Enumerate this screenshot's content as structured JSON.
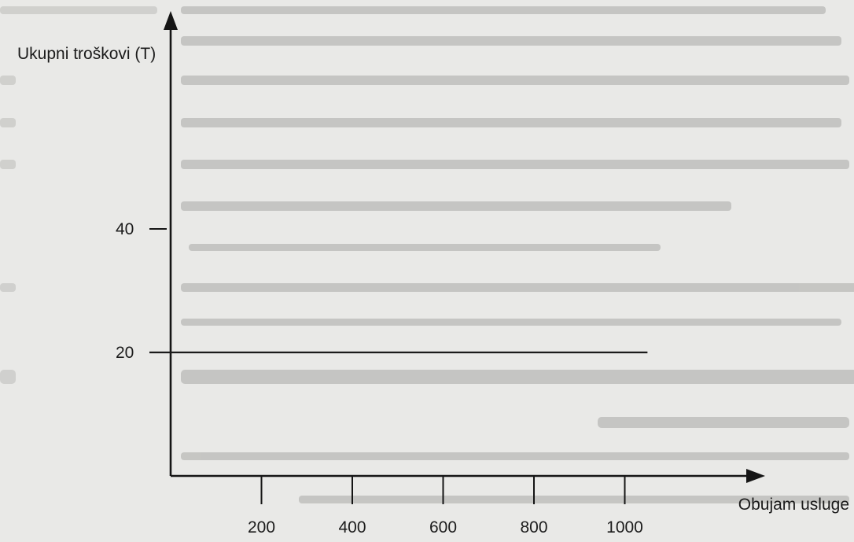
{
  "chart_data": {
    "type": "line",
    "title": "",
    "ylabel": "Ukupni troškovi (T)",
    "xlabel": "Obujam usluge",
    "x_ticks": [
      200,
      400,
      600,
      800,
      1000
    ],
    "y_ticks": [
      20,
      40
    ],
    "xlim": [
      0,
      1100
    ],
    "ylim": [
      0,
      76
    ],
    "series": [
      {
        "x": [
          0,
          1050
        ],
        "y": [
          20,
          20
        ]
      }
    ],
    "grid": false,
    "legend": "none"
  }
}
